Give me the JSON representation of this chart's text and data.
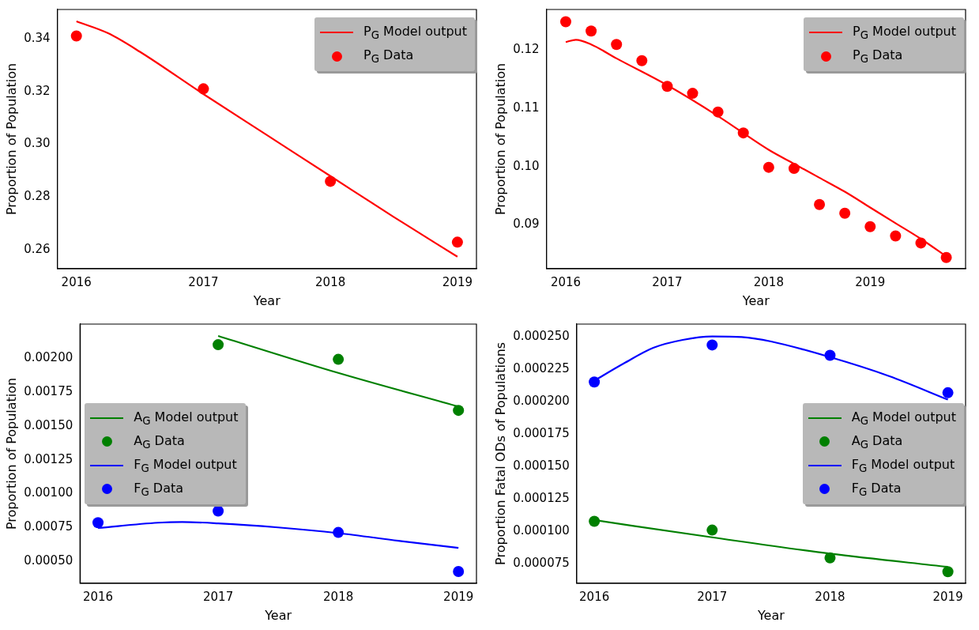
{
  "chart_data": [
    {
      "type": "line",
      "xlabel": "Year",
      "ylabel": "Proportion of Population",
      "xlim": [
        2015.85,
        2019.15
      ],
      "xticks": [
        2016,
        2017,
        2018,
        2019
      ],
      "ylim": [
        0.253,
        0.351
      ],
      "yticks": [
        0.26,
        0.28,
        {
          "value": 0.3,
          "label": "0.30"
        },
        0.32,
        0.34
      ],
      "legend": "top right",
      "series": [
        {
          "name": "P$_{G}$ Model output",
          "type": "line",
          "color": "#ff0000",
          "x": [
            2016,
            2016.25,
            2016.5,
            2017,
            2017.5,
            2018,
            2018.5,
            2019
          ],
          "values": [
            0.3465,
            0.342,
            0.335,
            0.319,
            0.3035,
            0.288,
            0.2725,
            0.2575
          ]
        },
        {
          "name": "P$_{G}$ Data",
          "type": "scatter",
          "marker": "circle",
          "color": "#ff0000",
          "x": [
            2016,
            2017,
            2018,
            2019
          ],
          "values": [
            0.341,
            0.321,
            0.286,
            0.263
          ]
        }
      ]
    },
    {
      "type": "line",
      "xlabel": "Year",
      "ylabel": "Proportion of Population",
      "xlim": [
        2015.81,
        2019.94
      ],
      "xticks": [
        2016,
        2017,
        2018,
        2019
      ],
      "ylim": [
        0.0825,
        0.127
      ],
      "yticks": [
        0.09,
        {
          "value": 0.1,
          "label": "0.10"
        },
        0.11,
        0.12
      ],
      "legend": "top right",
      "series": [
        {
          "name": "P$_{G}$ Model output",
          "type": "line",
          "color": "#ff0000",
          "x": [
            2016,
            2016.1,
            2016.25,
            2016.5,
            2017,
            2017.5,
            2018,
            2018.25,
            2018.5,
            2018.75,
            2019,
            2019.25,
            2019.5,
            2019.75
          ],
          "values": [
            0.1214,
            0.1218,
            0.121,
            0.1186,
            0.114,
            0.1087,
            0.1029,
            0.1005,
            0.0981,
            0.0957,
            0.093,
            0.0903,
            0.0876,
            0.0846
          ]
        },
        {
          "name": "P$_{G}$ Data",
          "type": "scatter",
          "marker": "circle",
          "color": "#ff0000",
          "x": [
            2016,
            2016.25,
            2016.5,
            2016.75,
            2017,
            2017.25,
            2017.5,
            2017.75,
            2018,
            2018.25,
            2018.5,
            2018.75,
            2019,
            2019.25,
            2019.5,
            2019.75
          ],
          "values": [
            0.1249,
            0.1233,
            0.121,
            0.1182,
            0.1138,
            0.1126,
            0.1094,
            0.1058,
            0.0999,
            0.0997,
            0.0935,
            0.092,
            0.0897,
            0.0881,
            0.0869,
            0.0844
          ]
        }
      ]
    },
    {
      "type": "line",
      "xlabel": "Year",
      "ylabel": "Proportion of Population",
      "xlim": [
        2015.85,
        2019.15
      ],
      "xticks": [
        2016,
        2017,
        2018,
        2019
      ],
      "ylim": [
        0.00034,
        0.00225
      ],
      "yticks": [
        {
          "value": 0.0005,
          "label": "0.00050"
        },
        {
          "value": 0.00075,
          "label": "0.00075"
        },
        {
          "value": 0.001,
          "label": "0.00100"
        },
        {
          "value": 0.00125,
          "label": "0.00125"
        },
        {
          "value": 0.0015,
          "label": "0.00150"
        },
        {
          "value": 0.00175,
          "label": "0.00175"
        },
        {
          "value": 0.002,
          "label": "0.00200"
        }
      ],
      "legend": "center left",
      "series": [
        {
          "name": "A$_{G}$ Model output",
          "type": "line",
          "color": "#008000",
          "x": [
            2017,
            2018,
            2019
          ],
          "values": [
            0.002163,
            0.00189,
            0.001642
          ]
        },
        {
          "name": "A$_{G}$ Data",
          "type": "scatter",
          "marker": "circle",
          "color": "#008000",
          "x": [
            2017,
            2018,
            2019
          ],
          "values": [
            0.002098,
            0.00199,
            0.001614
          ]
        },
        {
          "name": "F$_{G}$ Model output",
          "type": "line",
          "color": "#0000ff",
          "x": [
            2016,
            2016.5,
            2016.7,
            2017,
            2017.5,
            2018,
            2018.5,
            2019
          ],
          "values": [
            0.000747,
            0.000786,
            0.000791,
            0.000781,
            0.000751,
            0.000709,
            0.000653,
            0.0006
          ]
        },
        {
          "name": "F$_{G}$ Data",
          "type": "scatter",
          "marker": "circle",
          "color": "#0000ff",
          "x": [
            2016,
            2017,
            2018,
            2019
          ],
          "values": [
            0.000786,
            0.000872,
            0.000714,
            0.000426
          ]
        }
      ]
    },
    {
      "type": "line",
      "xlabel": "Year",
      "ylabel": "Proportion Fatal ODs of Populations",
      "xlim": [
        2015.85,
        2019.15
      ],
      "xticks": [
        2016,
        2017,
        2018,
        2019
      ],
      "ylim": [
        6e-05,
        0.00026
      ],
      "yticks": [
        {
          "value": 7.5e-05,
          "label": "0.000075"
        },
        {
          "value": 0.0001,
          "label": "0.000100"
        },
        {
          "value": 0.000125,
          "label": "0.000125"
        },
        {
          "value": 0.00015,
          "label": "0.000150"
        },
        {
          "value": 0.000175,
          "label": "0.000175"
        },
        {
          "value": 0.0002,
          "label": "0.000200"
        },
        {
          "value": 0.000225,
          "label": "0.000225"
        },
        {
          "value": 0.00025,
          "label": "0.000250"
        }
      ],
      "legend": "center right",
      "series": [
        {
          "name": "A$_{G}$ Model output",
          "type": "line",
          "color": "#008000",
          "x": [
            2016,
            2017,
            2018,
            2019
          ],
          "values": [
            0.0001087,
            9.54e-05,
            8.28e-05,
            7.26e-05
          ]
        },
        {
          "name": "A$_{G}$ Data",
          "type": "scatter",
          "marker": "circle",
          "color": "#008000",
          "x": [
            2016,
            2017,
            2018,
            2019
          ],
          "values": [
            0.0001078,
            0.000101,
            7.96e-05,
            6.89e-05
          ]
        },
        {
          "name": "F$_{G}$ Model output",
          "type": "line",
          "color": "#0000ff",
          "x": [
            2016,
            2016.25,
            2016.5,
            2016.75,
            2017,
            2017.25,
            2017.5,
            2018,
            2018.5,
            2019
          ],
          "values": [
            0.0002163,
            0.0002296,
            0.0002417,
            0.0002478,
            0.0002505,
            0.00025,
            0.0002466,
            0.0002345,
            0.0002199,
            0.0002017
          ]
        },
        {
          "name": "F$_{G}$ Data",
          "type": "scatter",
          "marker": "circle",
          "color": "#0000ff",
          "x": [
            2016,
            2017,
            2018,
            2019
          ],
          "values": [
            0.0002153,
            0.0002439,
            0.0002359,
            0.000207
          ]
        }
      ]
    }
  ]
}
